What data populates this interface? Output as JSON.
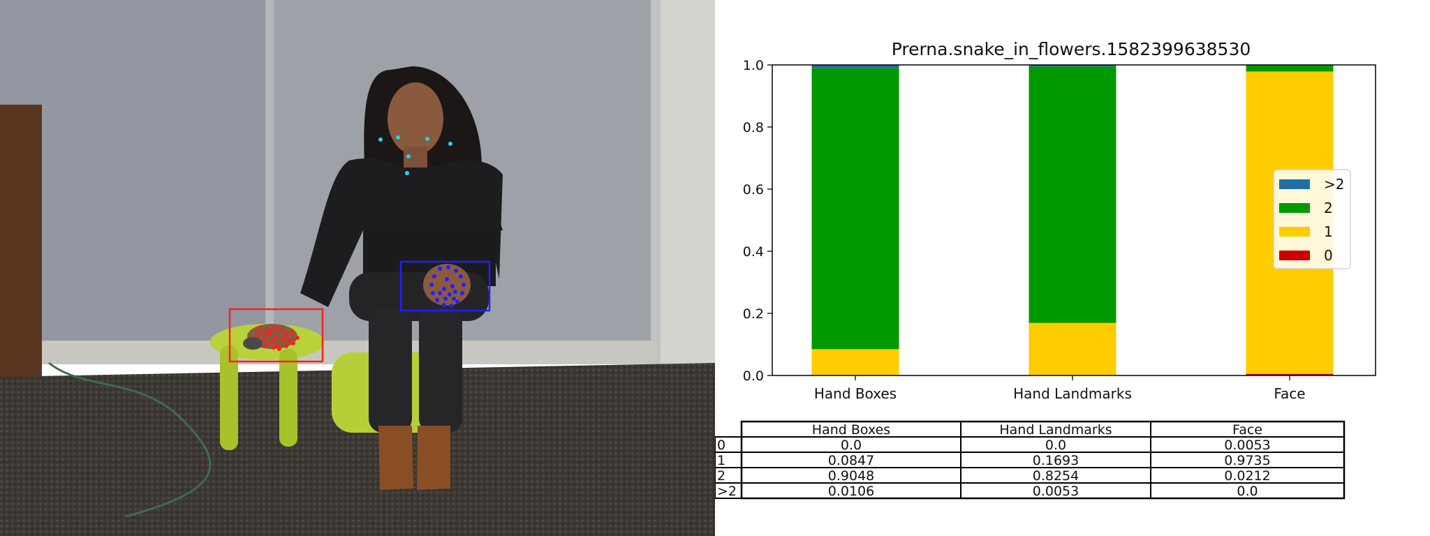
{
  "chart_data": {
    "type": "bar",
    "stacked": true,
    "title": "Prerna.snake_in_flowers.1582399638530",
    "categories": [
      "Hand Boxes",
      "Hand Landmarks",
      "Face"
    ],
    "ylim": [
      0,
      1.0
    ],
    "yticks": [
      "0.0",
      "0.2",
      "0.4",
      "0.6",
      "0.8",
      "1.0"
    ],
    "series": [
      {
        "name": "0",
        "color": "#cc0000",
        "values": [
          0.0,
          0.0,
          0.0053
        ]
      },
      {
        "name": "1",
        "color": "#ffcc00",
        "values": [
          0.0847,
          0.1693,
          0.9735
        ]
      },
      {
        "name": "2",
        "color": "#009900",
        "values": [
          0.9048,
          0.8254,
          0.0212
        ]
      },
      {
        "name": ">2",
        "color": "#1f6fa5",
        "values": [
          0.0106,
          0.0053,
          0.0
        ]
      }
    ],
    "legend": {
      "placement": "center-right",
      "order": [
        ">2",
        "2",
        "1",
        "0"
      ]
    },
    "table": {
      "columns": [
        "Hand Boxes",
        "Hand Landmarks",
        "Face"
      ],
      "rows": [
        {
          "label": "0",
          "cells": [
            "0.0",
            "0.0",
            "0.0053"
          ]
        },
        {
          "label": "1",
          "cells": [
            "0.0847",
            "0.1693",
            "0.9735"
          ]
        },
        {
          "label": "2",
          "cells": [
            "0.9048",
            "0.8254",
            "0.0212"
          ]
        },
        {
          "label": ">2",
          "cells": [
            "0.0106",
            "0.0053",
            "0.0"
          ]
        }
      ]
    }
  },
  "photo": {
    "face_point_color": "#22d3ee",
    "left_hand_color": "#ff2020",
    "right_hand_color": "#2020ff"
  }
}
